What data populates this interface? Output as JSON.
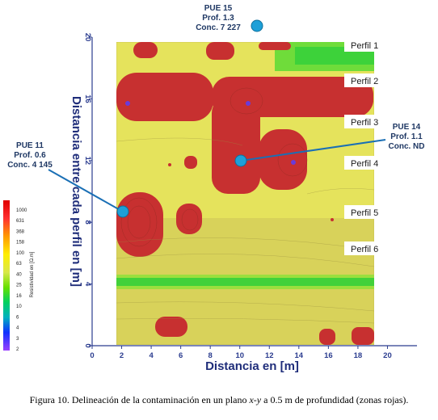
{
  "chart_data": {
    "type": "heatmap",
    "xlabel": "Distancia en [m]",
    "ylabel": "Distancia entre cada perfil en [m]",
    "xlim": [
      0,
      22
    ],
    "ylim": [
      0,
      20
    ],
    "x_ticks": [
      "0",
      "2",
      "4",
      "6",
      "8",
      "10",
      "12",
      "14",
      "16",
      "18",
      "20"
    ],
    "y_ticks": [
      "0",
      "4",
      "8",
      "12",
      "16",
      "20"
    ],
    "colorbar": {
      "title": "Resistividad en [Ω.m]",
      "ticks": [
        "1000",
        "631",
        "368",
        "158",
        "100",
        "63",
        "40",
        "25",
        "16",
        "10",
        "6",
        "4",
        "3",
        "2"
      ]
    },
    "profiles": [
      {
        "label": "Perfil 1",
        "y": 20
      },
      {
        "label": "Perfil 2",
        "y": 16
      },
      {
        "label": "Perfil 3",
        "y": 12.5
      },
      {
        "label": "Perfil 4",
        "y": 11.5
      },
      {
        "label": "Perfil 5",
        "y": 8.2
      },
      {
        "label": "Perfil 6",
        "y": 6
      }
    ],
    "wells": [
      {
        "name": "PUE 15",
        "depth": "Prof. 1.3",
        "conc": "Conc. 7 227",
        "x": 10.8,
        "y": 21.2
      },
      {
        "name": "PUE 14",
        "depth": "Prof. 1.1",
        "conc": "Conc. ND",
        "x": 9.9,
        "y": 12.2
      },
      {
        "name": "PUE 11",
        "depth": "Prof. 0.6",
        "conc": "Conc. 4 145",
        "x": 2.1,
        "y": 8.9
      }
    ]
  },
  "caption": {
    "prefix": "Figura 10. Delineación de la contaminación en un plano ",
    "italic": "x-y",
    "suffix": " a 0.5 m de profundidad (zonas rojas)."
  }
}
